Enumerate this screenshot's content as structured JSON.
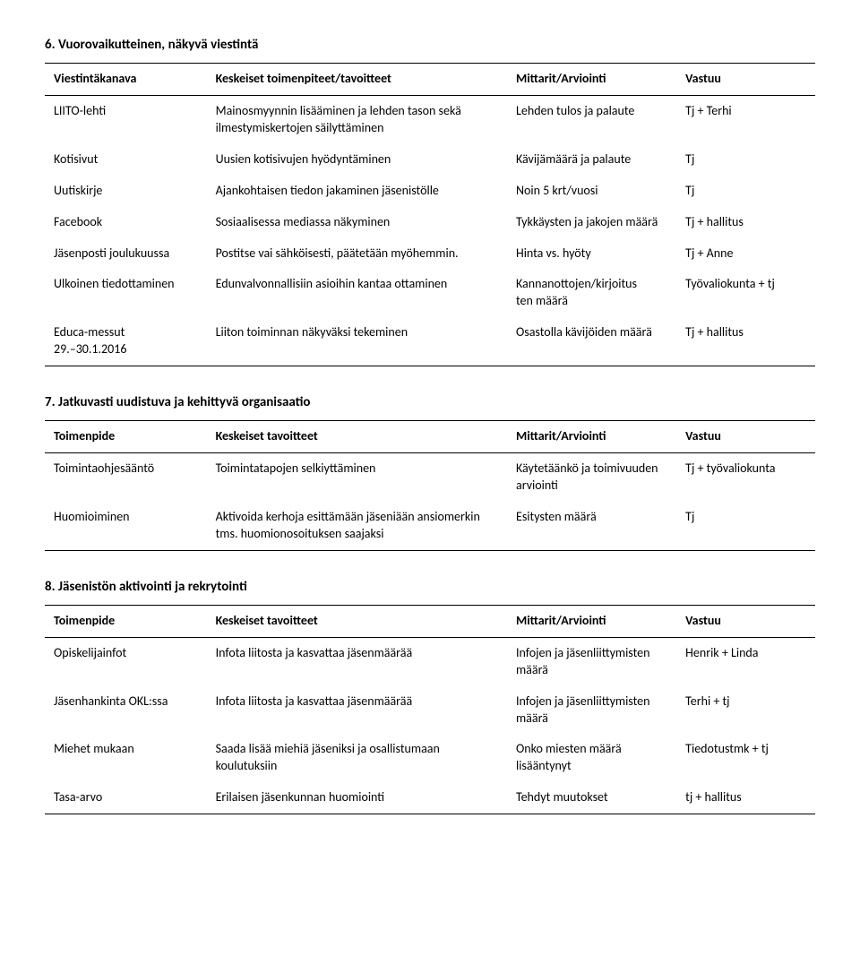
{
  "section6": {
    "title": "6.   Vuorovaikutteinen, näkyvä viestintä",
    "headers": [
      "Viestintäkanava",
      "Keskeiset toimenpiteet/tavoitteet",
      "Mittarit/Arviointi",
      "Vastuu"
    ],
    "rows": [
      [
        "LIITO-lehti",
        "Mainosmyynnin lisääminen ja lehden tason sekä ilmestymiskertojen säilyttäminen",
        "Lehden tulos ja palaute",
        "Tj + Terhi"
      ],
      [
        "Kotisivut",
        "Uusien kotisivujen hyödyntäminen",
        "Kävijämäärä ja palaute",
        "Tj"
      ],
      [
        "Uutiskirje",
        "Ajankohtaisen tiedon jakaminen jäsenistölle",
        "Noin 5 krt/vuosi",
        "Tj"
      ],
      [
        "Facebook",
        "Sosiaalisessa mediassa näkyminen",
        "Tykkäysten ja jakojen määrä",
        "Tj + hallitus"
      ],
      [
        "Jäsenposti joulukuussa",
        "Postitse vai sähköisesti, päätetään myöhemmin.",
        "Hinta vs. hyöty",
        "Tj + Anne"
      ],
      [
        "Ulkoinen tiedottaminen",
        "Edunvalvonnallisiin asioihin kantaa ottaminen",
        "Kannanottojen/kirjoitus\nten määrä",
        "Työvaliokunta + tj"
      ],
      [
        "Educa-messut\n29.–30.1.2016",
        "Liiton toiminnan näkyväksi tekeminen",
        "Osastolla kävijöiden määrä",
        "Tj + hallitus"
      ]
    ]
  },
  "section7": {
    "title": "7.   Jatkuvasti uudistuva ja kehittyvä organisaatio",
    "headers": [
      "Toimenpide",
      "Keskeiset tavoitteet",
      "Mittarit/Arviointi",
      "Vastuu"
    ],
    "rows": [
      [
        "Toimintaohjesääntö",
        "Toimintatapojen selkiyttäminen",
        "Käytetäänkö ja toimivuuden arviointi",
        "Tj + työvaliokunta"
      ],
      [
        "Huomioiminen",
        "Aktivoida kerhoja esittämään jäseniään ansiomerkin tms. huomionosoituksen saajaksi",
        "Esitysten määrä",
        "Tj"
      ]
    ]
  },
  "section8": {
    "title": "8.   Jäsenistön aktivointi ja rekrytointi",
    "headers": [
      "Toimenpide",
      "Keskeiset tavoitteet",
      "Mittarit/Arviointi",
      "Vastuu"
    ],
    "rows": [
      [
        "Opiskelijainfot",
        "Infota liitosta ja kasvattaa jäsenmäärää",
        "Infojen ja jäsenliittymisten määrä",
        "Henrik + Linda"
      ],
      [
        "Jäsenhankinta OKL:ssa",
        "Infota liitosta ja kasvattaa jäsenmäärää",
        "Infojen ja jäsenliittymisten määrä",
        "Terhi + tj"
      ],
      [
        "Miehet mukaan",
        "Saada lisää miehiä jäseniksi ja osallistumaan koulutuksiin",
        "Onko miesten määrä lisääntynyt",
        "Tiedotustmk + tj"
      ],
      [
        "Tasa-arvo",
        "Erilaisen jäsenkunnan huomiointi",
        "Tehdyt muutokset",
        "tj + hallitus"
      ]
    ]
  }
}
